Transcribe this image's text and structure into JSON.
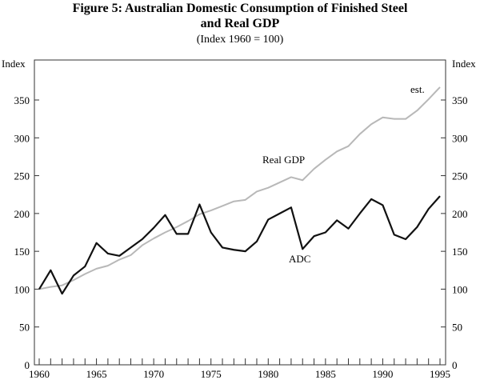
{
  "chart_data": {
    "type": "line",
    "title": "Figure 5: Australian Domestic Consumption of Finished Steel",
    "title_line2": "and Real GDP",
    "subtitle": "(Index 1960 = 100)",
    "ylabel_left": "Index",
    "ylabel_right": "Index",
    "xlabel": "",
    "xlim": [
      1960,
      1995
    ],
    "ylim": [
      0,
      400
    ],
    "x_ticks": [
      "1960",
      "1965",
      "1970",
      "1975",
      "1980",
      "1985",
      "1990",
      "1995"
    ],
    "y_ticks": [
      "0",
      "50",
      "100",
      "150",
      "200",
      "250",
      "300",
      "350"
    ],
    "grid": false,
    "x": [
      1960,
      1961,
      1962,
      1963,
      1964,
      1965,
      1966,
      1967,
      1968,
      1969,
      1970,
      1971,
      1972,
      1973,
      1974,
      1975,
      1976,
      1977,
      1978,
      1979,
      1980,
      1981,
      1982,
      1983,
      1984,
      1985,
      1986,
      1987,
      1988,
      1989,
      1990,
      1991,
      1992,
      1993,
      1994,
      1995
    ],
    "series": [
      {
        "name": "Real GDP",
        "color": "#b8b8b8",
        "values": [
          100,
          103,
          105,
          112,
          120,
          127,
          131,
          139,
          145,
          158,
          167,
          175,
          182,
          190,
          199,
          204,
          210,
          216,
          218,
          229,
          234,
          241,
          248,
          244,
          259,
          271,
          282,
          289,
          305,
          318,
          327,
          325,
          325,
          336,
          351,
          367
        ]
      },
      {
        "name": "ADC",
        "color": "#111111",
        "values": [
          100,
          125,
          94,
          118,
          130,
          161,
          147,
          144,
          155,
          166,
          181,
          198,
          173,
          173,
          212,
          175,
          155,
          152,
          150,
          163,
          192,
          200,
          208,
          153,
          170,
          175,
          191,
          180,
          200,
          219,
          211,
          172,
          166,
          182,
          206,
          223
        ]
      }
    ],
    "annotations": [
      "est."
    ]
  }
}
